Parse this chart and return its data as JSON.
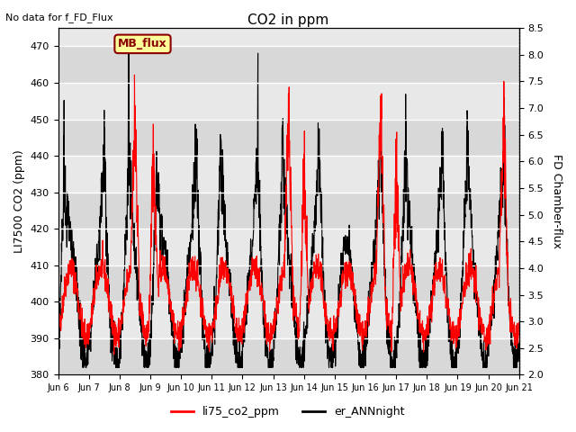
{
  "title": "CO2 in ppm",
  "top_text": "No data for f_FD_Flux",
  "ylabel_left": "LI7500 CO2 (ppm)",
  "ylabel_right": "FD Chamber-flux",
  "ylim_left": [
    380,
    475
  ],
  "ylim_right": [
    2.0,
    8.5
  ],
  "yticks_left": [
    380,
    390,
    400,
    410,
    420,
    430,
    440,
    450,
    460,
    470
  ],
  "yticks_right": [
    2.0,
    2.5,
    3.0,
    3.5,
    4.0,
    4.5,
    5.0,
    5.5,
    6.0,
    6.5,
    7.0,
    7.5,
    8.0,
    8.5
  ],
  "xtick_labels": [
    "Jun 6",
    "Jun 7",
    "Jun 8",
    "Jun 9",
    "Jun 10",
    "Jun 11",
    "Jun 12",
    "Jun 13",
    "Jun 14",
    "Jun 15",
    "Jun 16",
    "Jun 17",
    "Jun 18",
    "Jun 19",
    "Jun 20",
    "Jun 21"
  ],
  "legend_entries": [
    "li75_co2_ppm",
    "er_ANNnight"
  ],
  "legend_colors": [
    "#ff0000",
    "#000000"
  ],
  "mb_flux_label": "MB_flux",
  "mb_flux_bg": "#ffff99",
  "mb_flux_border": "#8B0000",
  "background_color": "#ffffff",
  "plot_bg_color": "#e8e8e8",
  "line_color_red": "#ff0000",
  "line_color_black": "#000000",
  "grid_color": "#ffffff",
  "stripe_colors": [
    "#d8d8d8",
    "#e8e8e8"
  ],
  "num_days": 15,
  "seed": 42
}
